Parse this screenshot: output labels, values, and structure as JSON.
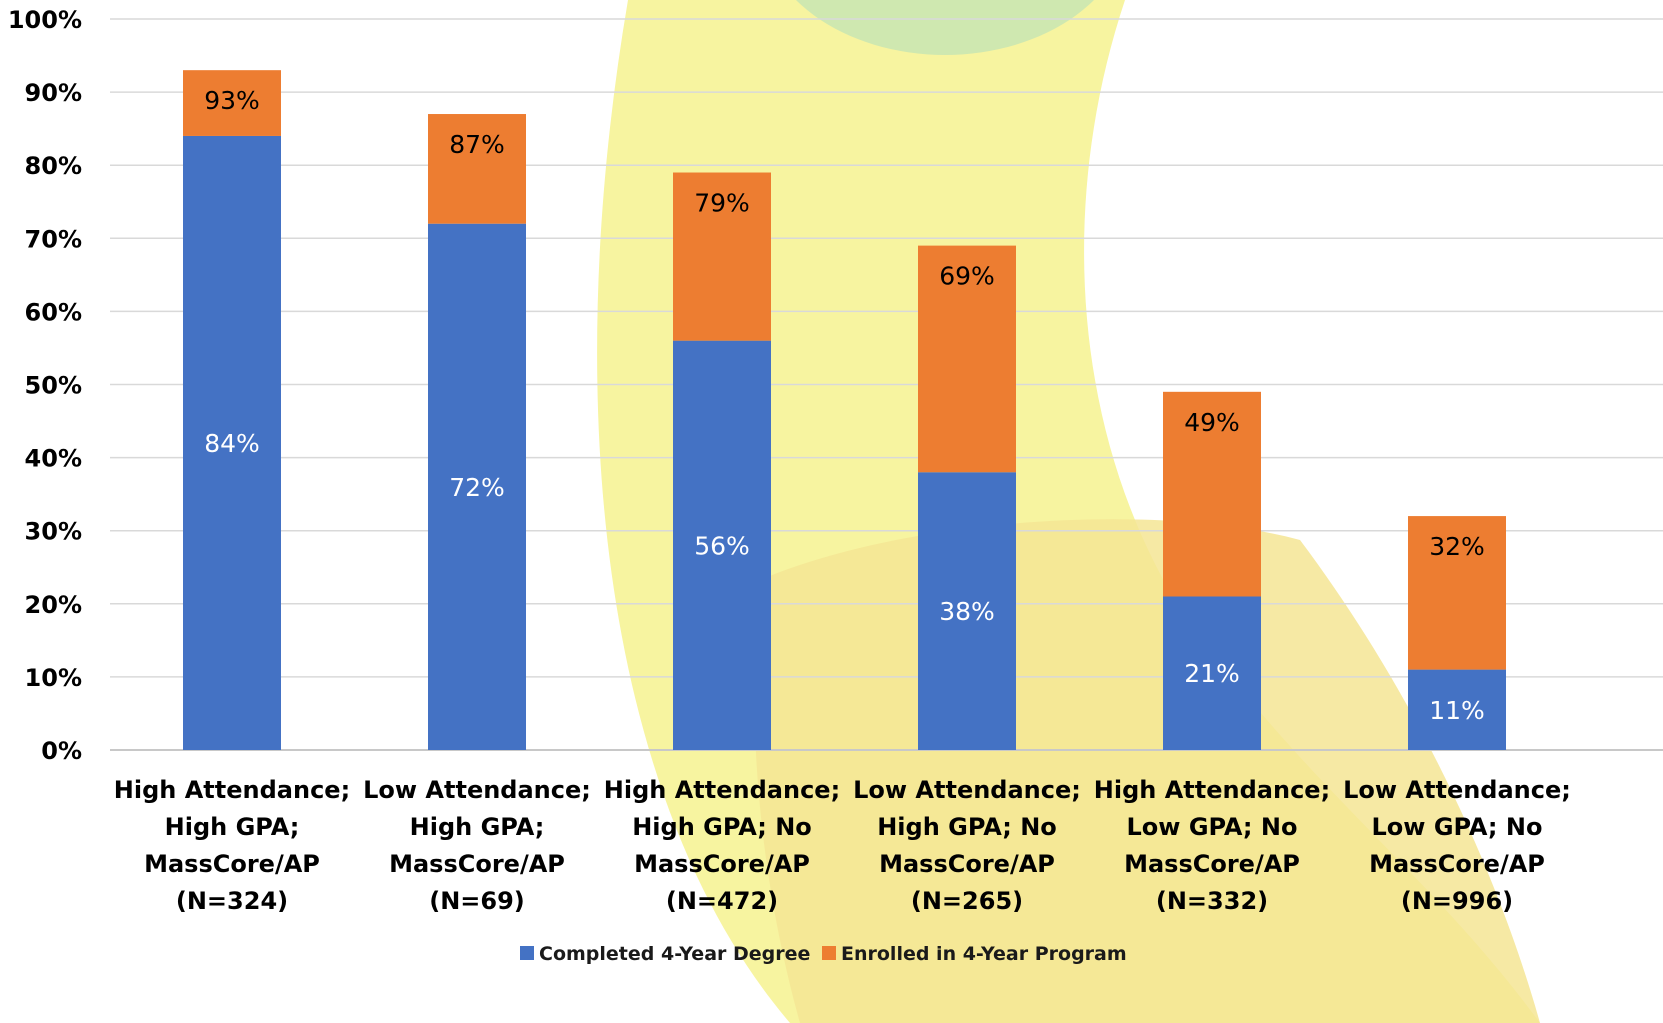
{
  "chart_data": {
    "type": "bar",
    "stacked": true,
    "categories": [
      [
        "High Attendance;",
        "High GPA;",
        "MassCore/AP",
        "(N=324)"
      ],
      [
        "Low Attendance;",
        "High GPA;",
        "MassCore/AP",
        "(N=69)"
      ],
      [
        "High Attendance;",
        "High GPA; No",
        "MassCore/AP",
        "(N=472)"
      ],
      [
        "Low Attendance;",
        "High GPA; No",
        "MassCore/AP",
        "(N=265)"
      ],
      [
        "High Attendance;",
        "Low GPA; No",
        "MassCore/AP",
        "(N=332)"
      ],
      [
        "Low Attendance;",
        "Low GPA; No",
        "MassCore/AP",
        "(N=996)"
      ]
    ],
    "series": [
      {
        "name": "Completed 4-Year Degree",
        "color": "#4472C4",
        "values": [
          84,
          72,
          56,
          38,
          21,
          11
        ],
        "labels": [
          "84%",
          "72%",
          "56%",
          "38%",
          "21%",
          "11%"
        ],
        "label_color": "#ffffff"
      },
      {
        "name": "Enrolled in 4-Year Program",
        "color": "#ED7D31",
        "values": [
          9,
          15,
          23,
          31,
          28,
          21
        ],
        "labels": [
          "93%",
          "87%",
          "79%",
          "69%",
          "49%",
          "32%"
        ],
        "label_color": "#000000"
      }
    ],
    "ylim": [
      0,
      100
    ],
    "yticks": [
      "0%",
      "10%",
      "20%",
      "30%",
      "40%",
      "50%",
      "60%",
      "70%",
      "80%",
      "90%",
      "100%"
    ],
    "grid": true,
    "legend_position": "bottom",
    "title": "",
    "xlabel": "",
    "ylabel": "",
    "background": {
      "yellow": "#F7F4A0",
      "green": "#CFE8B0",
      "tan": "#F4E594"
    }
  }
}
